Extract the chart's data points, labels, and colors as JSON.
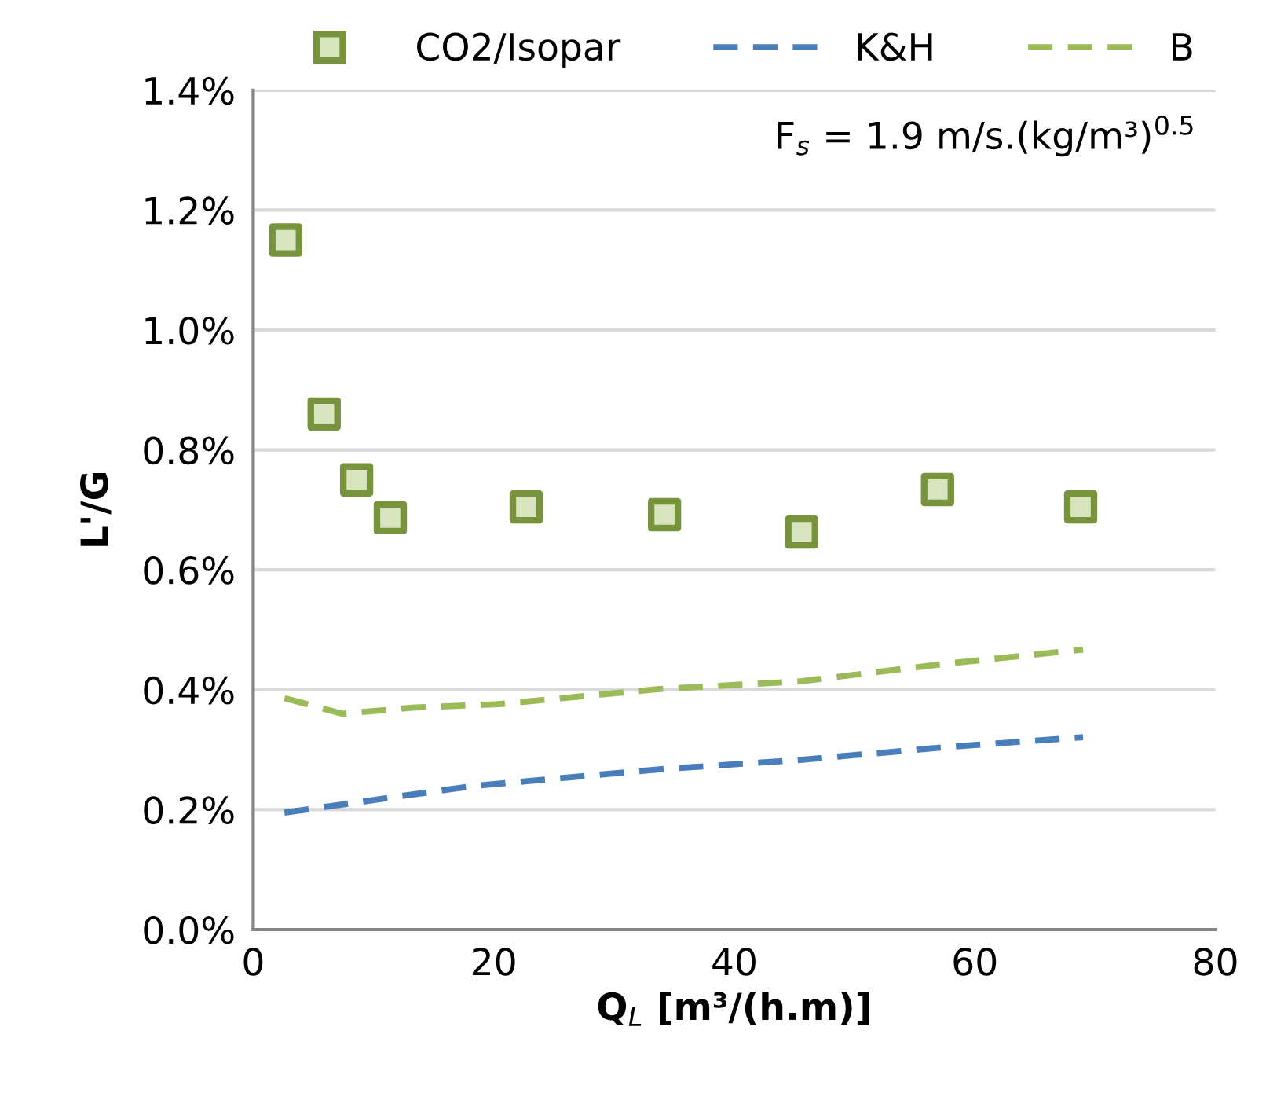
{
  "chart_data": {
    "type": "scatter",
    "xlabel": "Q$_{L}$ [m³/(h.m)]",
    "ylabel": "L'/G",
    "annotations": [
      "F$_{s}$ = 1.9 m/s.(kg/m³)$^{0.5}$"
    ],
    "series": [
      {
        "name": "CO2/Isopar",
        "color": "#77933c",
        "marker": "square",
        "x": [
          2.7,
          5.9,
          8.6,
          11.4,
          22.7,
          34.2,
          45.6,
          56.9,
          68.8
        ],
        "values": [
          1.15,
          0.86,
          0.75,
          0.687,
          0.705,
          0.692,
          0.663,
          0.734,
          0.705
        ]
      },
      {
        "name": "K&H",
        "type": "line",
        "color": "#4a7ebb",
        "line_style": "dashed",
        "x": [
          2.6,
          18.1,
          33.6,
          45.5,
          57.4,
          69.0
        ],
        "values": [
          0.195,
          0.239,
          0.267,
          0.283,
          0.304,
          0.321
        ]
      },
      {
        "name": "B",
        "type": "line",
        "color": "#9bbb59",
        "line_style": "dashed",
        "x": [
          2.6,
          7.4,
          13.2,
          20.4,
          33.6,
          45.5,
          57.4,
          69.0
        ],
        "values": [
          0.386,
          0.36,
          0.37,
          0.376,
          0.401,
          0.414,
          0.443,
          0.467
        ]
      }
    ],
    "xlim": [
      0,
      80
    ],
    "xticks": [
      0,
      20,
      40,
      60,
      80
    ],
    "ylim": [
      0,
      1.4
    ],
    "yticks": [
      {
        "value": 0,
        "label": "0.0%"
      },
      {
        "value": 0.2,
        "label": "0.2%"
      },
      {
        "value": 0.4,
        "label": "0.4%"
      },
      {
        "value": 0.6,
        "label": "0.6%"
      },
      {
        "value": 0.8,
        "label": "0.8%"
      },
      {
        "value": 1.0,
        "label": "1.0%"
      },
      {
        "value": 1.2,
        "label": "1.2%"
      },
      {
        "value": 1.4,
        "label": "1.4%"
      }
    ],
    "grid": "y",
    "legend": "top"
  }
}
